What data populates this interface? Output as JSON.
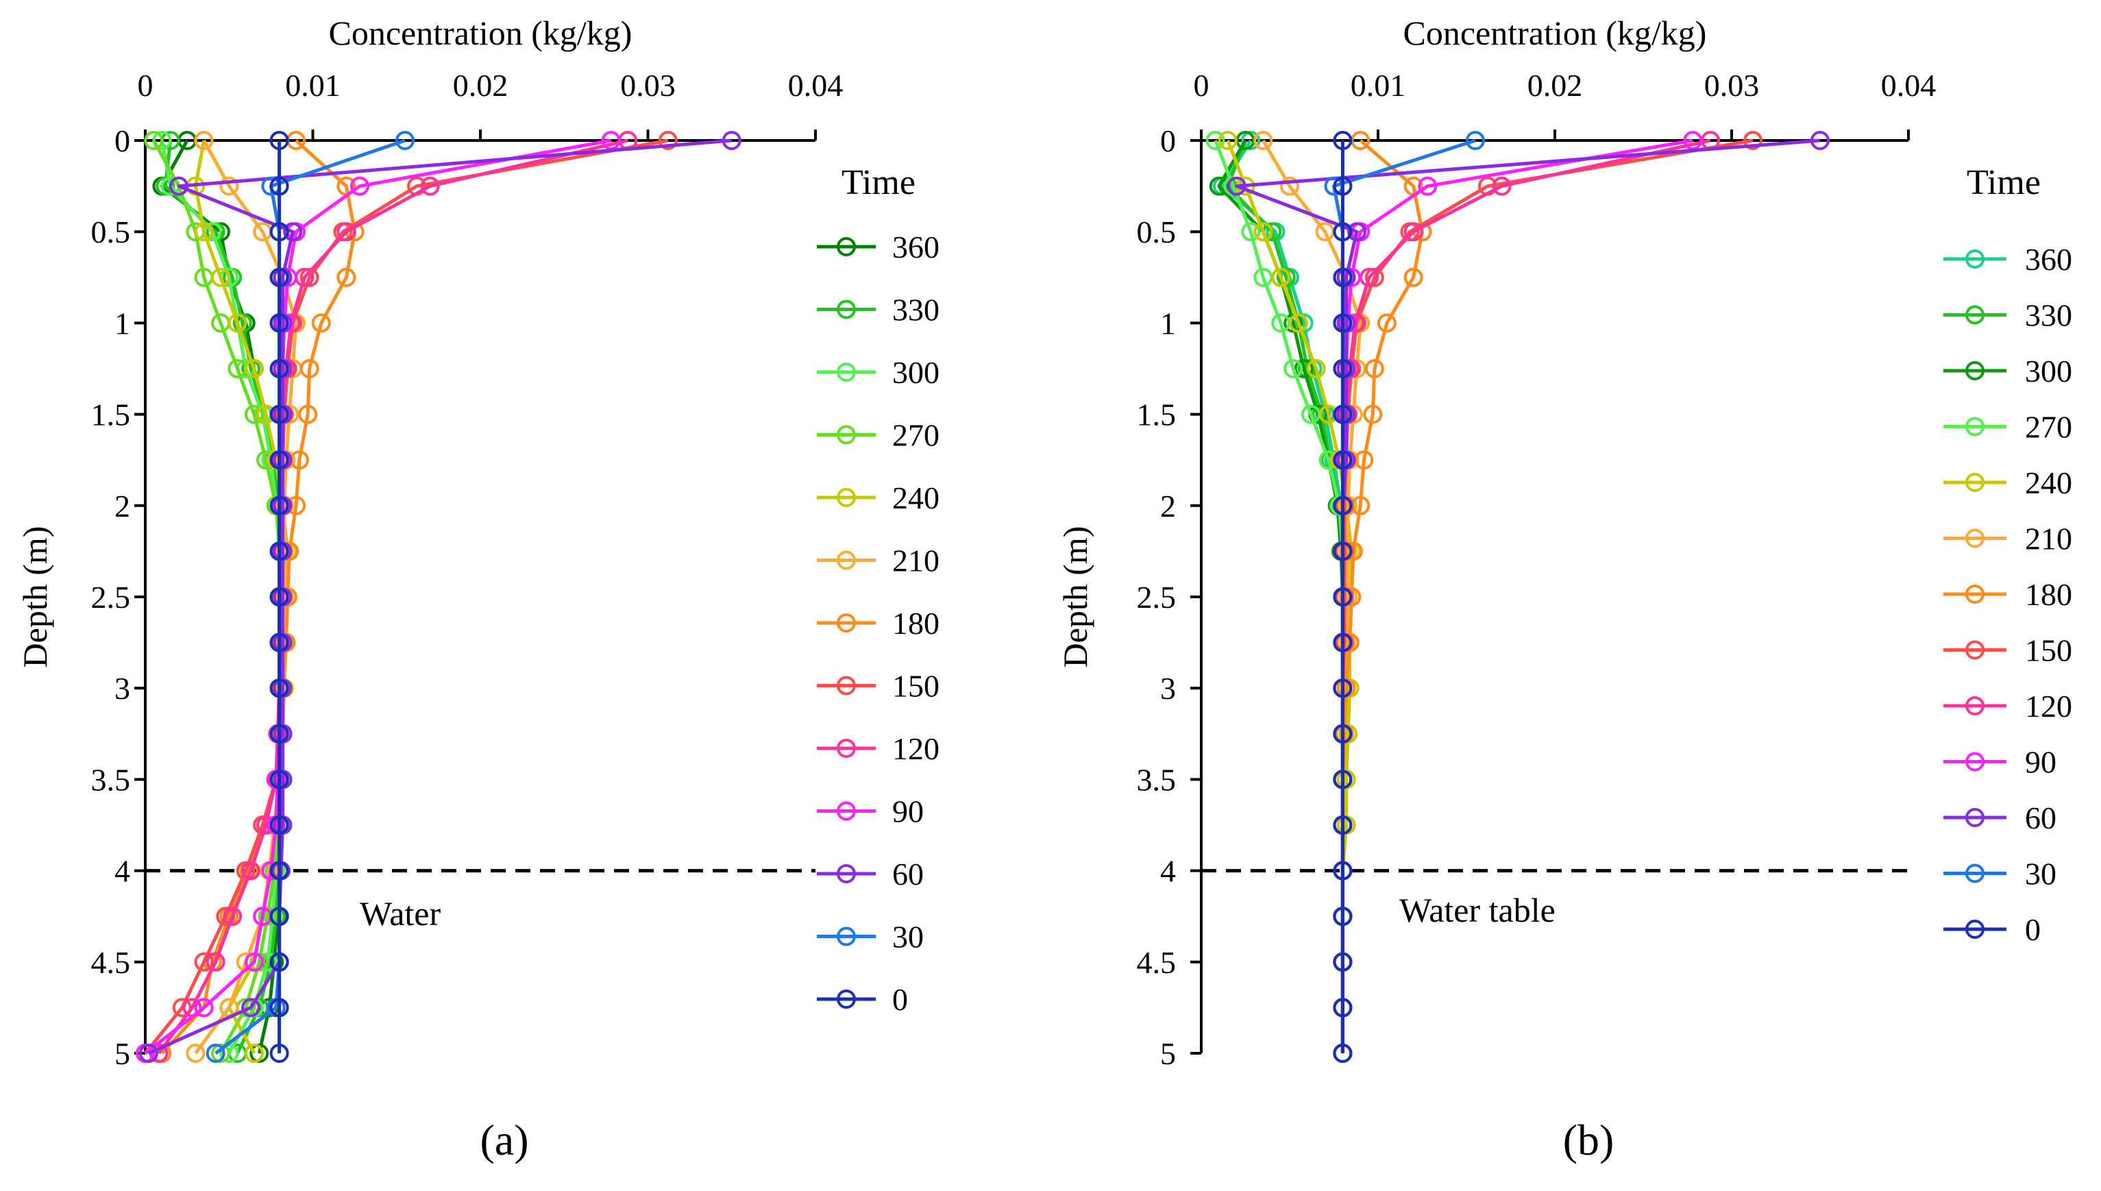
{
  "chart_data": [
    {
      "panel_label": "(a)",
      "type": "line",
      "xlabel": "Concentration (kg/kg)",
      "ylabel": "Depth (m)",
      "xlim": [
        0,
        0.04
      ],
      "ylim": [
        0,
        5
      ],
      "x_ticks": [
        "0",
        "0.01",
        "0.02",
        "0.03",
        "0.04"
      ],
      "y_ticks": [
        "0",
        "0.5",
        "1",
        "1.5",
        "2",
        "2.5",
        "3",
        "3.5",
        "4",
        "4.5",
        "5"
      ],
      "legend_title": "Time",
      "annotation": "Water",
      "reference_line": {
        "depth": 4,
        "style": "dashed"
      },
      "depths": [
        0,
        0.25,
        0.5,
        0.75,
        1,
        1.25,
        1.5,
        1.75,
        2,
        2.25,
        2.5,
        2.75,
        3,
        3.25,
        3.5,
        3.75,
        4,
        4.25,
        4.5,
        4.75,
        5
      ],
      "series": [
        {
          "name": "360",
          "color": "#008000",
          "values": [
            0.0025,
            0.001,
            0.0045,
            0.005,
            0.006,
            0.0065,
            0.0072,
            0.0077,
            0.008,
            0.0082,
            0.0082,
            0.0082,
            0.0082,
            0.0082,
            0.0082,
            0.0081,
            0.008,
            0.0079,
            0.0077,
            0.0074,
            0.0068
          ]
        },
        {
          "name": "330",
          "color": "#22c422",
          "values": [
            0.0015,
            0.0012,
            0.0042,
            0.0052,
            0.0058,
            0.0063,
            0.0071,
            0.0076,
            0.008,
            0.0081,
            0.0082,
            0.0082,
            0.0082,
            0.0082,
            0.0082,
            0.0081,
            0.008,
            0.0078,
            0.0075,
            0.0068,
            0.0055
          ]
        },
        {
          "name": "300",
          "color": "#55ee55",
          "values": [
            0.001,
            0.0015,
            0.004,
            0.005,
            0.0055,
            0.006,
            0.007,
            0.0075,
            0.0078,
            0.008,
            0.0082,
            0.0082,
            0.0082,
            0.0082,
            0.0082,
            0.008,
            0.0078,
            0.0076,
            0.0073,
            0.0065,
            0.005
          ]
        },
        {
          "name": "270",
          "color": "#66dd22",
          "values": [
            0.0005,
            0.002,
            0.003,
            0.0035,
            0.0045,
            0.0055,
            0.0065,
            0.0072,
            0.0078,
            0.0081,
            0.0083,
            0.0083,
            0.0083,
            0.0082,
            0.0081,
            0.008,
            0.0077,
            0.0073,
            0.0068,
            0.006,
            0.0045
          ]
        },
        {
          "name": "240",
          "color": "#c8c800",
          "values": [
            0.0035,
            0.003,
            0.0035,
            0.0045,
            0.0055,
            0.0065,
            0.0072,
            0.0078,
            0.0082,
            0.0085,
            0.0085,
            0.0084,
            0.0083,
            0.0082,
            0.008,
            0.0078,
            0.0075,
            0.007,
            0.0065,
            0.005,
            0.0065
          ]
        },
        {
          "name": "210",
          "color": "#ffaa33",
          "values": [
            0.0035,
            0.005,
            0.007,
            0.0082,
            0.009,
            0.0088,
            0.0086,
            0.0084,
            0.0083,
            0.0083,
            0.0083,
            0.0082,
            0.0082,
            0.0081,
            0.008,
            0.0077,
            0.0074,
            0.007,
            0.006,
            0.005,
            0.003
          ]
        },
        {
          "name": "180",
          "color": "#ff8c1a",
          "values": [
            0.009,
            0.012,
            0.0125,
            0.012,
            0.0105,
            0.0098,
            0.0097,
            0.0092,
            0.009,
            0.0086,
            0.0085,
            0.0084,
            0.0082,
            0.008,
            0.0078,
            0.0072,
            0.0062,
            0.005,
            0.004,
            0.0035,
            0.001
          ]
        },
        {
          "name": "150",
          "color": "#ff4d4d",
          "values": [
            0.0312,
            0.0162,
            0.0118,
            0.0098,
            0.0088,
            0.0085,
            0.0083,
            0.0082,
            0.0081,
            0.0081,
            0.0081,
            0.0081,
            0.0081,
            0.008,
            0.0078,
            0.007,
            0.006,
            0.0048,
            0.0035,
            0.0022,
            0.0
          ]
        },
        {
          "name": "120",
          "color": "#ff3399",
          "values": [
            0.0288,
            0.017,
            0.012,
            0.0095,
            0.0087,
            0.0084,
            0.0082,
            0.0081,
            0.008,
            0.008,
            0.008,
            0.008,
            0.008,
            0.0079,
            0.0078,
            0.0072,
            0.0063,
            0.0052,
            0.0042,
            0.0028,
            0.0008
          ]
        },
        {
          "name": "90",
          "color": "#ff22ff",
          "values": [
            0.0278,
            0.0128,
            0.009,
            0.0085,
            0.0083,
            0.0082,
            0.0081,
            0.0081,
            0.0081,
            0.0081,
            0.008,
            0.008,
            0.008,
            0.008,
            0.0079,
            0.0078,
            0.0075,
            0.007,
            0.0065,
            0.0035,
            0.0
          ]
        },
        {
          "name": "60",
          "color": "#8a2be2",
          "values": [
            0.035,
            0.002,
            0.0088,
            0.0082,
            0.0082,
            0.0082,
            0.0082,
            0.0082,
            0.0082,
            0.0082,
            0.0082,
            0.0082,
            0.0082,
            0.0082,
            0.0082,
            0.0082,
            0.0081,
            0.008,
            0.008,
            0.0063,
            0.0002
          ]
        },
        {
          "name": "30",
          "color": "#1f77e8",
          "values": [
            0.0155,
            0.0075,
            0.008,
            0.008,
            0.008,
            0.008,
            0.008,
            0.008,
            0.008,
            0.008,
            0.008,
            0.008,
            0.008,
            0.008,
            0.008,
            0.008,
            0.008,
            0.008,
            0.008,
            0.0078,
            0.0042
          ]
        },
        {
          "name": "0",
          "color": "#1a2fb8",
          "values": [
            0.008,
            0.008,
            0.008,
            0.008,
            0.008,
            0.008,
            0.008,
            0.008,
            0.008,
            0.008,
            0.008,
            0.008,
            0.008,
            0.008,
            0.008,
            0.008,
            0.008,
            0.008,
            0.008,
            0.008,
            0.008
          ]
        }
      ]
    },
    {
      "panel_label": "(b)",
      "type": "line",
      "xlabel": "Concentration (kg/kg)",
      "ylabel": "Depth (m)",
      "xlim": [
        0,
        0.04
      ],
      "ylim": [
        0,
        5
      ],
      "x_ticks": [
        "0",
        "0.01",
        "0.02",
        "0.03",
        "0.04"
      ],
      "y_ticks": [
        "0",
        "0.5",
        "1",
        "1.5",
        "2",
        "2.5",
        "3",
        "3.5",
        "4",
        "4.5",
        "5"
      ],
      "legend_title": "Time",
      "annotation": "Water table",
      "reference_line": {
        "depth": 4,
        "style": "dashed"
      },
      "depths": [
        0,
        0.25,
        0.5,
        0.75,
        1,
        1.25,
        1.5,
        1.75,
        2,
        2.25,
        2.5,
        2.75,
        3,
        3.25,
        3.5,
        3.75,
        4,
        4.25,
        4.5,
        4.75,
        5
      ],
      "series": [
        {
          "name": "360",
          "color": "#1ccf8a",
          "values": [
            0.0028,
            0.0012,
            0.0042,
            0.005,
            0.0058,
            0.0063,
            0.007,
            0.0075,
            0.0079,
            0.008,
            0.008,
            0.008,
            0.008,
            0.008,
            0.008,
            0.008,
            0.008,
            0.008,
            0.008,
            0.008,
            0.008
          ]
        },
        {
          "name": "330",
          "color": "#22c422",
          "values": [
            0.0025,
            0.0015,
            0.004,
            0.0048,
            0.0055,
            0.006,
            0.0068,
            0.0073,
            0.0078,
            0.008,
            0.008,
            0.008,
            0.008,
            0.008,
            0.008,
            0.008,
            0.008,
            0.008,
            0.008,
            0.008,
            0.008
          ]
        },
        {
          "name": "300",
          "color": "#0d9a0d",
          "values": [
            0.0025,
            0.001,
            0.0035,
            0.0045,
            0.0052,
            0.0058,
            0.0066,
            0.0072,
            0.0077,
            0.0079,
            0.008,
            0.008,
            0.008,
            0.008,
            0.008,
            0.008,
            0.008,
            0.008,
            0.008,
            0.008,
            0.008
          ]
        },
        {
          "name": "270",
          "color": "#55ee55",
          "values": [
            0.0008,
            0.0018,
            0.0028,
            0.0035,
            0.0045,
            0.0052,
            0.0062,
            0.0072,
            0.0078,
            0.008,
            0.008,
            0.008,
            0.008,
            0.008,
            0.008,
            0.008,
            0.008,
            0.008,
            0.008,
            0.008,
            0.008
          ]
        },
        {
          "name": "240",
          "color": "#c8c800",
          "values": [
            0.0015,
            0.0025,
            0.0035,
            0.0045,
            0.0055,
            0.0065,
            0.0072,
            0.0078,
            0.0082,
            0.0085,
            0.0085,
            0.0084,
            0.0084,
            0.0083,
            0.0082,
            0.0082,
            0.008,
            0.008,
            0.008,
            0.008,
            0.008
          ]
        },
        {
          "name": "210",
          "color": "#ffaa33",
          "values": [
            0.0035,
            0.005,
            0.007,
            0.0082,
            0.009,
            0.0088,
            0.0086,
            0.0084,
            0.0083,
            0.0083,
            0.0083,
            0.0082,
            0.0082,
            0.0081,
            0.008,
            0.008,
            0.008,
            0.008,
            0.008,
            0.008,
            0.008
          ]
        },
        {
          "name": "180",
          "color": "#ff8c1a",
          "values": [
            0.009,
            0.012,
            0.0125,
            0.012,
            0.0105,
            0.0098,
            0.0097,
            0.0092,
            0.009,
            0.0086,
            0.0085,
            0.0084,
            0.0082,
            0.0081,
            0.008,
            0.008,
            0.008,
            0.008,
            0.008,
            0.008,
            0.008
          ]
        },
        {
          "name": "150",
          "color": "#ff4d4d",
          "values": [
            0.0312,
            0.0162,
            0.0118,
            0.0098,
            0.0088,
            0.0085,
            0.0083,
            0.0082,
            0.0081,
            0.0081,
            0.0081,
            0.0081,
            0.008,
            0.008,
            0.008,
            0.008,
            0.008,
            0.008,
            0.008,
            0.008,
            0.008
          ]
        },
        {
          "name": "120",
          "color": "#ff3399",
          "values": [
            0.0288,
            0.017,
            0.012,
            0.0095,
            0.0087,
            0.0084,
            0.0082,
            0.0081,
            0.008,
            0.008,
            0.008,
            0.008,
            0.008,
            0.008,
            0.008,
            0.008,
            0.008,
            0.008,
            0.008,
            0.008,
            0.008
          ]
        },
        {
          "name": "90",
          "color": "#ff22ff",
          "values": [
            0.0278,
            0.0128,
            0.009,
            0.0085,
            0.0083,
            0.0082,
            0.0081,
            0.0081,
            0.008,
            0.008,
            0.008,
            0.008,
            0.008,
            0.008,
            0.008,
            0.008,
            0.008,
            0.008,
            0.008,
            0.008,
            0.008
          ]
        },
        {
          "name": "60",
          "color": "#8a2be2",
          "values": [
            0.035,
            0.002,
            0.0088,
            0.0082,
            0.0082,
            0.0082,
            0.0082,
            0.0082,
            0.008,
            0.008,
            0.008,
            0.008,
            0.008,
            0.008,
            0.008,
            0.008,
            0.008,
            0.008,
            0.008,
            0.008,
            0.008
          ]
        },
        {
          "name": "30",
          "color": "#1f77e8",
          "values": [
            0.0155,
            0.0075,
            0.008,
            0.008,
            0.008,
            0.008,
            0.008,
            0.008,
            0.008,
            0.008,
            0.008,
            0.008,
            0.008,
            0.008,
            0.008,
            0.008,
            0.008,
            0.008,
            0.008,
            0.008,
            0.008
          ]
        },
        {
          "name": "0",
          "color": "#1a2fb8",
          "values": [
            0.008,
            0.008,
            0.008,
            0.008,
            0.008,
            0.008,
            0.008,
            0.008,
            0.008,
            0.008,
            0.008,
            0.008,
            0.008,
            0.008,
            0.008,
            0.008,
            0.008,
            0.008,
            0.008,
            0.008,
            0.008
          ]
        }
      ]
    }
  ]
}
